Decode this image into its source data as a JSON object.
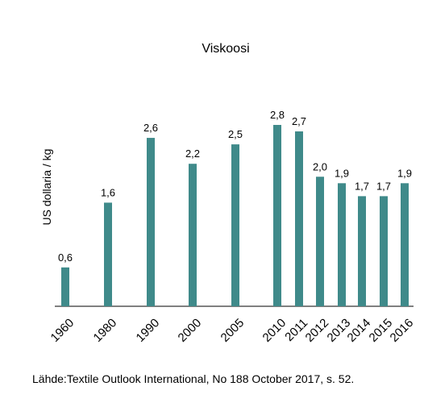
{
  "chart_data": {
    "type": "bar",
    "title": "Viskoosi",
    "xlabel": "",
    "ylabel": "US dollaria / kg",
    "categories": [
      "1960",
      "1980",
      "1990",
      "2000",
      "2005",
      "2010",
      "2011",
      "2012",
      "2013",
      "2014",
      "2015",
      "2016"
    ],
    "values": [
      0.6,
      1.6,
      2.6,
      2.2,
      2.5,
      2.8,
      2.7,
      2.0,
      1.9,
      1.7,
      1.7,
      1.9
    ],
    "value_labels": [
      "0,6",
      "1,6",
      "2,6",
      "2,2",
      "2,5",
      "2,8",
      "2,7",
      "2,0",
      "1,9",
      "1,7",
      "1,7",
      "1,9"
    ],
    "ylim": [
      0,
      3
    ],
    "grid": false,
    "legend": "none",
    "bar_color": "#3f8a8a"
  },
  "source": "Lähde:Textile Outlook International, No 188 October 2017, s. 52."
}
